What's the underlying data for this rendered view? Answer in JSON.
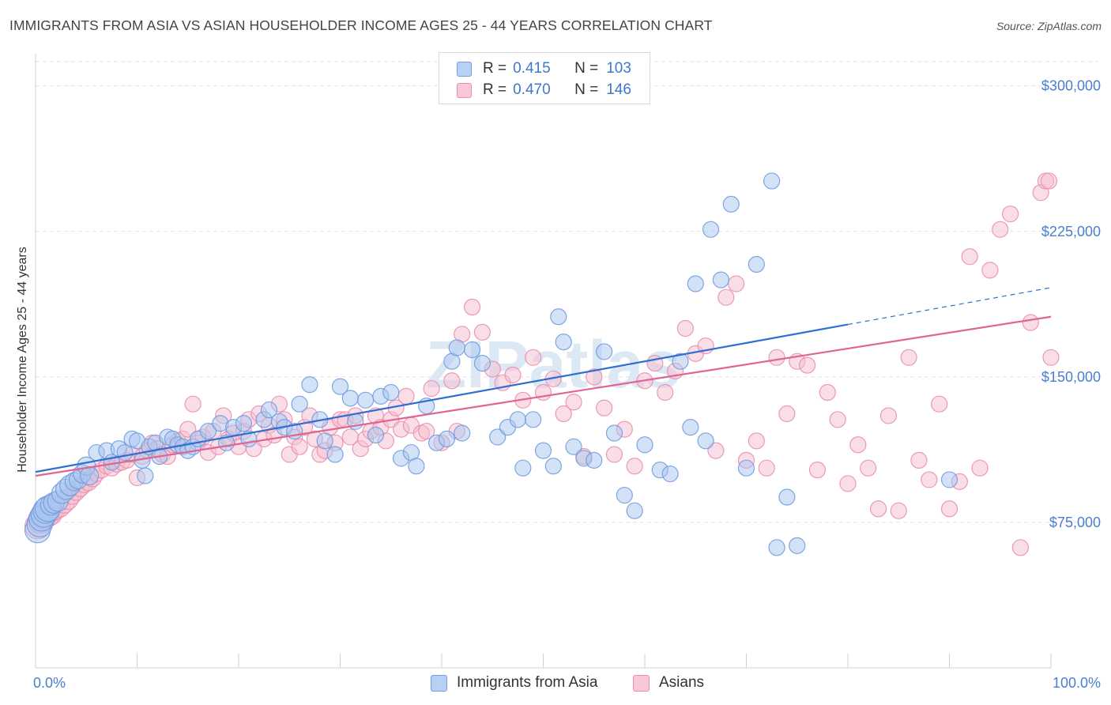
{
  "title": "IMMIGRANTS FROM ASIA VS ASIAN HOUSEHOLDER INCOME AGES 25 - 44 YEARS CORRELATION CHART",
  "source": "Source: ZipAtlas.com",
  "watermark": "ZIPatlas",
  "colors": {
    "blue_fill": "#aac6ef",
    "blue_stroke": "#6f9ddf",
    "blue_line": "#2f6fcf",
    "pink_fill": "#f6bdd0",
    "pink_stroke": "#e98fae",
    "pink_line": "#e06593",
    "tick_text": "#4a7fd0"
  },
  "legend": {
    "rows": [
      {
        "r_label": "R =",
        "r_value": "0.415",
        "n_label": "N =",
        "n_value": "103"
      },
      {
        "r_label": "R =",
        "r_value": "0.470",
        "n_label": "N =",
        "n_value": "146"
      }
    ]
  },
  "bottom_legend": {
    "series_a": "Immigrants from Asia",
    "series_b": "Asians"
  },
  "chart_data": {
    "type": "scatter",
    "title": "IMMIGRANTS FROM ASIA VS ASIAN HOUSEHOLDER INCOME AGES 25 - 44 YEARS CORRELATION CHART",
    "xlabel": "",
    "ylabel": "Householder Income Ages 25 - 44 years",
    "xlim": [
      0,
      100
    ],
    "ylim": [
      0,
      312500
    ],
    "x_tick_labels": [
      "0.0%",
      "100.0%"
    ],
    "y_ticks": [
      75000,
      150000,
      225000,
      300000
    ],
    "y_tick_labels": [
      "$75,000",
      "$150,000",
      "$225,000",
      "$300,000"
    ],
    "grid": true,
    "legend_position": "top-center",
    "series": [
      {
        "name": "Immigrants from Asia",
        "color": "#aac6ef",
        "trend": {
          "x0": 0,
          "y0": 101000,
          "x1": 80,
          "y1": 177000,
          "dashed_to_x": 100,
          "dashed_to_y": 196000
        },
        "points": [
          [
            0.2,
            71000
          ],
          [
            0.4,
            74000
          ],
          [
            0.6,
            77000
          ],
          [
            0.8,
            79000
          ],
          [
            1.0,
            81000
          ],
          [
            1.2,
            82000
          ],
          [
            1.5,
            84000
          ],
          [
            1.8,
            85000
          ],
          [
            2.2,
            86000
          ],
          [
            2.6,
            90000
          ],
          [
            3.0,
            92000
          ],
          [
            3.4,
            94000
          ],
          [
            3.8,
            96000
          ],
          [
            4.2,
            97000
          ],
          [
            4.6,
            100000
          ],
          [
            5.0,
            104000
          ],
          [
            5.3,
            99000
          ],
          [
            6.0,
            111000
          ],
          [
            7.0,
            112000
          ],
          [
            7.5,
            106000
          ],
          [
            8.2,
            113000
          ],
          [
            8.8,
            111000
          ],
          [
            9.5,
            118000
          ],
          [
            10.0,
            117000
          ],
          [
            10.5,
            107000
          ],
          [
            10.8,
            99000
          ],
          [
            11.2,
            114000
          ],
          [
            11.8,
            116000
          ],
          [
            12.2,
            109000
          ],
          [
            13.0,
            119000
          ],
          [
            13.5,
            118000
          ],
          [
            14.0,
            115000
          ],
          [
            14.5,
            114000
          ],
          [
            15.0,
            112000
          ],
          [
            15.5,
            114000
          ],
          [
            16.0,
            118000
          ],
          [
            17.0,
            122000
          ],
          [
            18.2,
            126000
          ],
          [
            18.8,
            116000
          ],
          [
            19.5,
            124000
          ],
          [
            20.5,
            126000
          ],
          [
            21.0,
            118000
          ],
          [
            22.5,
            128000
          ],
          [
            23.0,
            133000
          ],
          [
            24.0,
            127000
          ],
          [
            24.5,
            124000
          ],
          [
            25.5,
            122000
          ],
          [
            26.0,
            136000
          ],
          [
            27.0,
            146000
          ],
          [
            28.0,
            128000
          ],
          [
            28.5,
            117000
          ],
          [
            29.5,
            110000
          ],
          [
            30.0,
            145000
          ],
          [
            31.0,
            139000
          ],
          [
            31.5,
            127000
          ],
          [
            32.5,
            138000
          ],
          [
            33.5,
            120000
          ],
          [
            34.0,
            140000
          ],
          [
            35.0,
            142000
          ],
          [
            36.0,
            108000
          ],
          [
            37.0,
            111000
          ],
          [
            37.5,
            104000
          ],
          [
            38.5,
            135000
          ],
          [
            39.5,
            116000
          ],
          [
            40.5,
            118000
          ],
          [
            41.0,
            158000
          ],
          [
            41.5,
            165000
          ],
          [
            42.0,
            121000
          ],
          [
            43.0,
            164000
          ],
          [
            44.0,
            157000
          ],
          [
            45.5,
            119000
          ],
          [
            46.5,
            124000
          ],
          [
            47.5,
            128000
          ],
          [
            48.0,
            103000
          ],
          [
            49.0,
            128000
          ],
          [
            50.0,
            112000
          ],
          [
            51.0,
            104000
          ],
          [
            51.5,
            181000
          ],
          [
            52.0,
            168000
          ],
          [
            53.0,
            114000
          ],
          [
            54.0,
            108000
          ],
          [
            55.0,
            107000
          ],
          [
            56.0,
            163000
          ],
          [
            57.0,
            121000
          ],
          [
            58.0,
            89000
          ],
          [
            59.0,
            81000
          ],
          [
            60.0,
            115000
          ],
          [
            61.5,
            102000
          ],
          [
            62.5,
            100000
          ],
          [
            63.5,
            158000
          ],
          [
            64.5,
            124000
          ],
          [
            65.0,
            198000
          ],
          [
            66.0,
            117000
          ],
          [
            66.5,
            226000
          ],
          [
            67.5,
            200000
          ],
          [
            68.5,
            239000
          ],
          [
            70.0,
            103000
          ],
          [
            71.0,
            208000
          ],
          [
            72.5,
            251000
          ],
          [
            73.0,
            62000
          ],
          [
            74.0,
            88000
          ],
          [
            75.0,
            63000
          ],
          [
            90.0,
            97000
          ]
        ]
      },
      {
        "name": "Asians",
        "color": "#f6bdd0",
        "trend": {
          "x0": 0,
          "y0": 99000,
          "x1": 100,
          "y1": 181000
        },
        "points": [
          [
            0.2,
            73000
          ],
          [
            0.5,
            76000
          ],
          [
            0.8,
            78000
          ],
          [
            1.1,
            79000
          ],
          [
            1.4,
            80000
          ],
          [
            1.7,
            81000
          ],
          [
            2.0,
            82000
          ],
          [
            2.4,
            83000
          ],
          [
            2.8,
            85000
          ],
          [
            3.2,
            87000
          ],
          [
            3.6,
            89000
          ],
          [
            4.0,
            91000
          ],
          [
            4.4,
            93000
          ],
          [
            4.8,
            95000
          ],
          [
            5.2,
            96000
          ],
          [
            5.6,
            98000
          ],
          [
            6.0,
            100000
          ],
          [
            6.5,
            102000
          ],
          [
            7.0,
            104000
          ],
          [
            7.5,
            103000
          ],
          [
            8.0,
            105000
          ],
          [
            8.5,
            106000
          ],
          [
            9.0,
            107000
          ],
          [
            9.5,
            110000
          ],
          [
            10.0,
            98000
          ],
          [
            10.5,
            109000
          ],
          [
            11.0,
            112000
          ],
          [
            11.5,
            116000
          ],
          [
            12.0,
            113000
          ],
          [
            12.5,
            110000
          ],
          [
            13.0,
            109000
          ],
          [
            13.5,
            115000
          ],
          [
            14.0,
            117000
          ],
          [
            14.5,
            118000
          ],
          [
            15.0,
            123000
          ],
          [
            15.5,
            136000
          ],
          [
            16.0,
            116000
          ],
          [
            16.5,
            119000
          ],
          [
            17.0,
            111000
          ],
          [
            17.5,
            122000
          ],
          [
            18.0,
            114000
          ],
          [
            18.5,
            130000
          ],
          [
            19.0,
            118000
          ],
          [
            19.5,
            121000
          ],
          [
            20.0,
            114000
          ],
          [
            20.5,
            122000
          ],
          [
            21.0,
            128000
          ],
          [
            21.5,
            113000
          ],
          [
            22.0,
            131000
          ],
          [
            22.5,
            118000
          ],
          [
            23.0,
            125000
          ],
          [
            23.5,
            120000
          ],
          [
            24.0,
            136000
          ],
          [
            24.5,
            128000
          ],
          [
            25.0,
            110000
          ],
          [
            25.5,
            119000
          ],
          [
            26.0,
            114000
          ],
          [
            26.5,
            124000
          ],
          [
            27.0,
            130000
          ],
          [
            27.5,
            118000
          ],
          [
            28.0,
            110000
          ],
          [
            28.5,
            112000
          ],
          [
            29.0,
            124000
          ],
          [
            29.5,
            116000
          ],
          [
            30.0,
            128000
          ],
          [
            30.5,
            128000
          ],
          [
            31.0,
            119000
          ],
          [
            31.5,
            130000
          ],
          [
            32.0,
            113000
          ],
          [
            32.5,
            118000
          ],
          [
            33.0,
            122000
          ],
          [
            33.5,
            130000
          ],
          [
            34.0,
            124000
          ],
          [
            34.5,
            117000
          ],
          [
            35.0,
            128000
          ],
          [
            35.5,
            134000
          ],
          [
            36.0,
            123000
          ],
          [
            36.5,
            140000
          ],
          [
            37.0,
            125000
          ],
          [
            38.0,
            121000
          ],
          [
            38.5,
            122000
          ],
          [
            39.0,
            144000
          ],
          [
            40.0,
            116000
          ],
          [
            41.0,
            148000
          ],
          [
            41.5,
            122000
          ],
          [
            42.0,
            172000
          ],
          [
            43.0,
            186000
          ],
          [
            44.0,
            173000
          ],
          [
            45.0,
            154000
          ],
          [
            46.0,
            147000
          ],
          [
            47.0,
            151000
          ],
          [
            48.0,
            138000
          ],
          [
            49.0,
            160000
          ],
          [
            50.0,
            142000
          ],
          [
            51.0,
            149000
          ],
          [
            52.0,
            131000
          ],
          [
            53.0,
            137000
          ],
          [
            54.0,
            109000
          ],
          [
            55.0,
            150000
          ],
          [
            56.0,
            134000
          ],
          [
            57.0,
            110000
          ],
          [
            58.0,
            123000
          ],
          [
            59.0,
            104000
          ],
          [
            60.0,
            148000
          ],
          [
            61.0,
            157000
          ],
          [
            62.0,
            142000
          ],
          [
            63.0,
            153000
          ],
          [
            64.0,
            175000
          ],
          [
            65.0,
            162000
          ],
          [
            66.0,
            166000
          ],
          [
            67.0,
            112000
          ],
          [
            68.0,
            191000
          ],
          [
            69.0,
            198000
          ],
          [
            70.0,
            107000
          ],
          [
            71.0,
            117000
          ],
          [
            72.0,
            103000
          ],
          [
            73.0,
            160000
          ],
          [
            74.0,
            131000
          ],
          [
            75.0,
            158000
          ],
          [
            76.0,
            156000
          ],
          [
            77.0,
            102000
          ],
          [
            78.0,
            142000
          ],
          [
            79.0,
            128000
          ],
          [
            80.0,
            95000
          ],
          [
            81.0,
            115000
          ],
          [
            82.0,
            103000
          ],
          [
            83.0,
            82000
          ],
          [
            84.0,
            130000
          ],
          [
            85.0,
            81000
          ],
          [
            86.0,
            160000
          ],
          [
            87.0,
            107000
          ],
          [
            88.0,
            97000
          ],
          [
            89.0,
            136000
          ],
          [
            90.0,
            82000
          ],
          [
            91.0,
            96000
          ],
          [
            92.0,
            212000
          ],
          [
            93.0,
            103000
          ],
          [
            94.0,
            205000
          ],
          [
            95.0,
            226000
          ],
          [
            96.0,
            234000
          ],
          [
            97.0,
            62000
          ],
          [
            98.0,
            178000
          ],
          [
            99.0,
            245000
          ],
          [
            99.5,
            251000
          ],
          [
            99.8,
            251000
          ],
          [
            100.0,
            160000
          ]
        ]
      }
    ]
  }
}
